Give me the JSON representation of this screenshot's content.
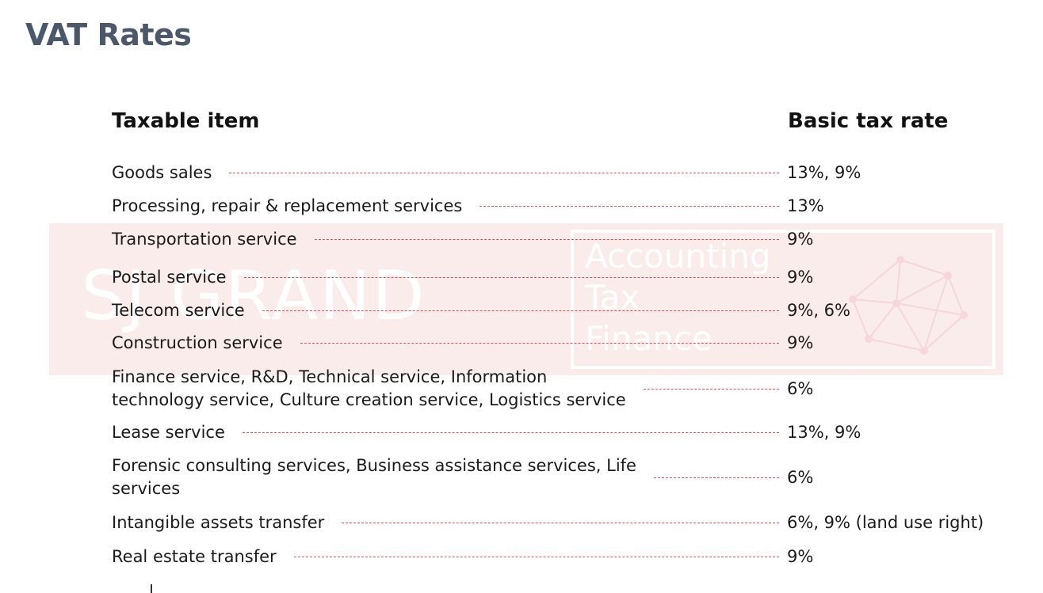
{
  "page": {
    "title": "VAT Rates"
  },
  "watermark": {
    "brand": "SJ GRAND",
    "lines": [
      "Accounting",
      "Tax",
      "Finance"
    ],
    "icon": "network-logo-icon"
  },
  "table": {
    "header_item": "Taxable item",
    "header_rate": "Basic tax rate",
    "rows": [
      {
        "item": "Goods sales",
        "rate": "13%, 9%"
      },
      {
        "item": "Processing, repair & replacement services",
        "rate": "13%"
      },
      {
        "item": "Transportation service",
        "rate": "9%"
      },
      {
        "item": "Postal service",
        "rate": "9%"
      },
      {
        "item": "Telecom service",
        "rate": "9%, 6%"
      },
      {
        "item": "Construction service",
        "rate": "9%"
      },
      {
        "item": "Finance service, R&D, Technical service, Information",
        "item_line2": "technology service, Culture creation service, Logistics service",
        "rate": "6%"
      },
      {
        "item": "Lease service",
        "rate": "13%, 9%"
      },
      {
        "item": "Forensic consulting services, Business assistance services, Life",
        "item_line2": "services",
        "rate": "6%"
      },
      {
        "item": "Intangible assets transfer",
        "rate": "6%, 9% (land use right)"
      },
      {
        "item": "Real estate transfer",
        "rate": "9%"
      }
    ]
  },
  "colors": {
    "title": "#4a586a",
    "leader": "#e0525a",
    "watermark_bg": "#fbe9e9"
  }
}
